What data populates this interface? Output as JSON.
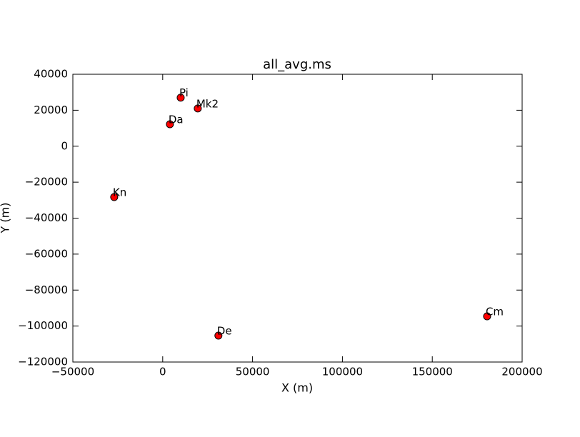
{
  "chart_data": {
    "type": "scatter",
    "title": "all_avg.ms",
    "x_label": "X (m)",
    "y_label": "Y (m)",
    "x": [
      10000,
      19500,
      4000,
      -27000,
      31000,
      180500
    ],
    "y": [
      27000,
      21000,
      12200,
      -28300,
      -105300,
      -94600
    ],
    "labels": [
      "Pi",
      "Mk2",
      "Da",
      "Kn",
      "De",
      "Cm"
    ],
    "color": "#ff0000",
    "xlim": [
      -50000,
      200000
    ],
    "ylim": [
      -120000,
      40000
    ],
    "xticks": [
      {
        "value": -50000,
        "label": "−50000"
      },
      0,
      50000,
      100000,
      150000,
      200000
    ],
    "yticks": [
      {
        "value": -120000,
        "label": "−120000"
      },
      {
        "value": -100000,
        "label": "−100000"
      },
      {
        "value": -80000,
        "label": "−80000"
      },
      {
        "value": -60000,
        "label": "−60000"
      },
      {
        "value": -40000,
        "label": "−40000"
      },
      {
        "value": -20000,
        "label": "−20000"
      },
      0,
      20000,
      40000
    ],
    "grid": false
  }
}
